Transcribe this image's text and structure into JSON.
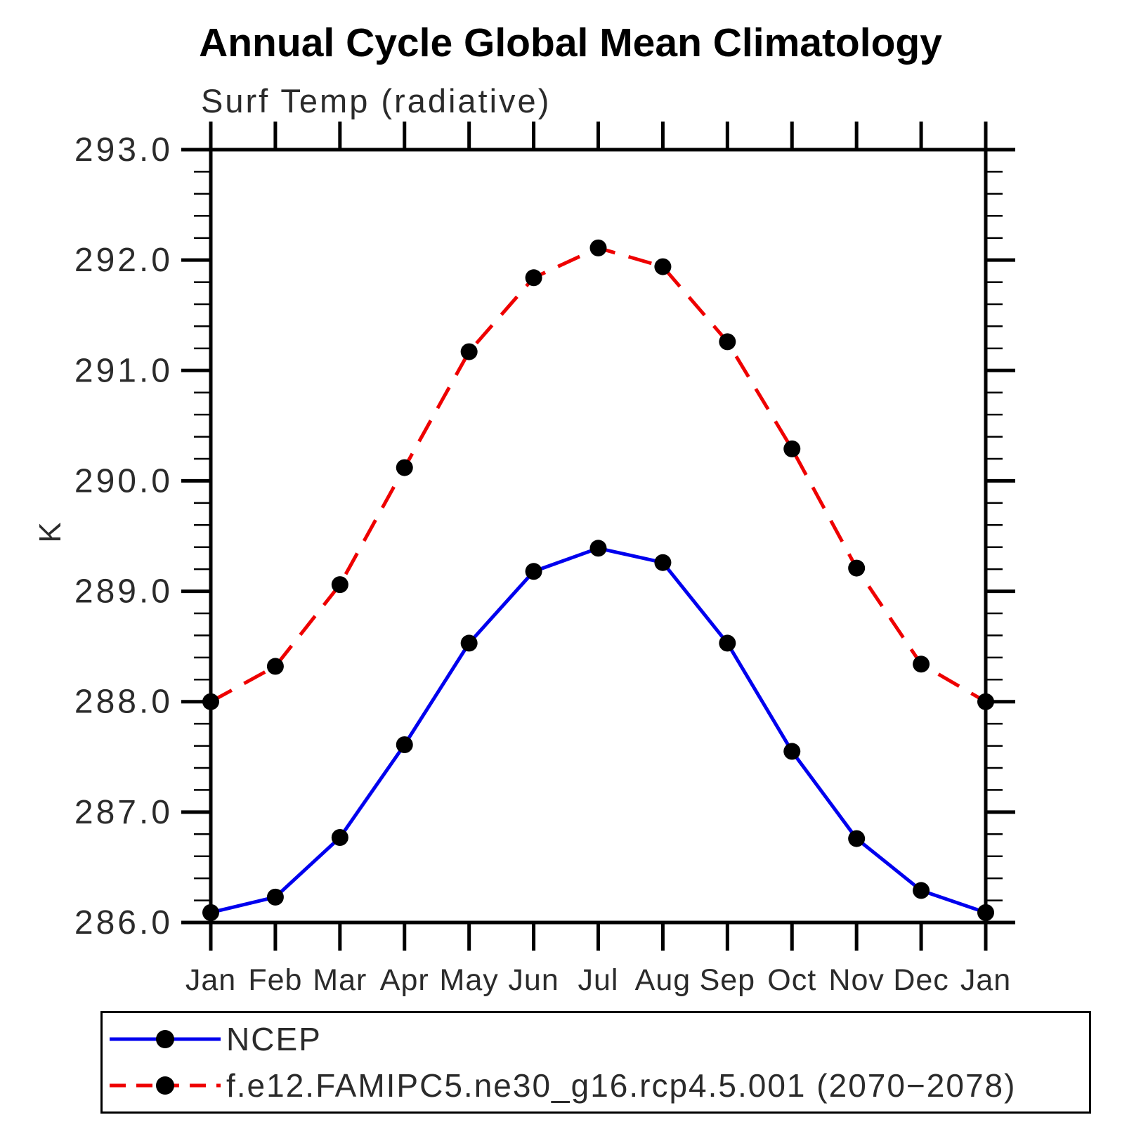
{
  "chart_data": {
    "type": "line",
    "title": "Annual Cycle Global Mean Climatology",
    "subtitle": "Surf Temp (radiative)",
    "ylabel": "K",
    "xlabel": "",
    "categories": [
      "Jan",
      "Feb",
      "Mar",
      "Apr",
      "May",
      "Jun",
      "Jul",
      "Aug",
      "Sep",
      "Oct",
      "Nov",
      "Dec",
      "Jan"
    ],
    "ylim": [
      286.0,
      293.0
    ],
    "ytick_step": 1.0,
    "yminor_step": 0.2,
    "ytick_labels": [
      "286.0",
      "287.0",
      "288.0",
      "289.0",
      "290.0",
      "291.0",
      "292.0",
      "293.0"
    ],
    "grid": false,
    "legend_position": "bottom-left-box",
    "frame_color": "#000000",
    "series": [
      {
        "name": "NCEP",
        "color": "#0000ee",
        "line_style": "solid",
        "marker": "filled-circle",
        "marker_color": "#000000",
        "values": [
          286.09,
          286.23,
          286.77,
          287.61,
          288.53,
          289.18,
          289.39,
          289.26,
          288.53,
          287.55,
          286.76,
          286.29,
          286.09
        ]
      },
      {
        "name": "f.e12.FAMIPC5.ne30_g16.rcp4.5.001 (2070−2078)",
        "color": "#ee0000",
        "line_style": "dashed",
        "marker": "filled-circle",
        "marker_color": "#000000",
        "values": [
          288.0,
          288.32,
          289.06,
          290.12,
          291.17,
          291.84,
          292.11,
          291.94,
          291.26,
          290.29,
          289.21,
          288.34,
          288.0
        ]
      }
    ]
  }
}
